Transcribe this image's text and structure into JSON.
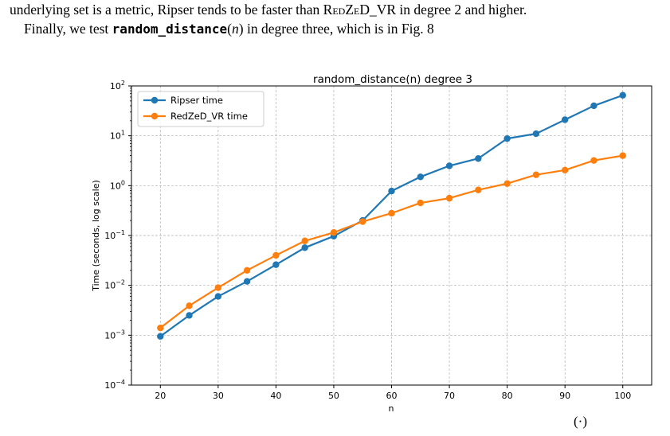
{
  "text": {
    "line1_pre": "underlying set is a metric, Ripser tends to be faster than ",
    "line1_sc": "RedZeD_VR",
    "line1_post": " in degree 2 and higher.",
    "line2_pre": "Finally, we test ",
    "line2_code": "random_distance",
    "line2_paren_open": "(",
    "line2_var": "n",
    "line2_paren_close": ")",
    "line2_post": " in degree three, which is in Fig. 8",
    "caption_stub": "(·)"
  },
  "colors": {
    "ripser": "#1f77b4",
    "redzed": "#ff7f0e",
    "grid": "#b0b0b0"
  },
  "chart_data": {
    "type": "line",
    "title": "random_distance(n) degree 3",
    "xlabel": "n",
    "ylabel": "Time (seconds, log scale)",
    "yscale": "log",
    "xlim": [
      15,
      105
    ],
    "ylim": [
      0.0001,
      100
    ],
    "xticks": [
      20,
      30,
      40,
      50,
      60,
      70,
      80,
      90,
      100
    ],
    "yticks_exp": [
      -4,
      -3,
      -2,
      -1,
      0,
      1,
      2
    ],
    "ytick_base": "10",
    "grid": true,
    "legend_position": "top-left",
    "x": [
      20,
      25,
      30,
      35,
      40,
      45,
      50,
      55,
      60,
      65,
      70,
      75,
      80,
      85,
      90,
      95,
      100
    ],
    "series": [
      {
        "name": "Ripser time",
        "values": [
          0.00095,
          0.0025,
          0.006,
          0.012,
          0.026,
          0.057,
          0.097,
          0.2,
          0.78,
          1.5,
          2.5,
          3.5,
          8.8,
          11,
          21,
          40,
          65
        ]
      },
      {
        "name": "RedZeD_VR time",
        "values": [
          0.0014,
          0.0039,
          0.009,
          0.02,
          0.04,
          0.078,
          0.115,
          0.19,
          0.28,
          0.45,
          0.56,
          0.82,
          1.1,
          1.65,
          2.05,
          3.2,
          4.0
        ]
      }
    ]
  }
}
